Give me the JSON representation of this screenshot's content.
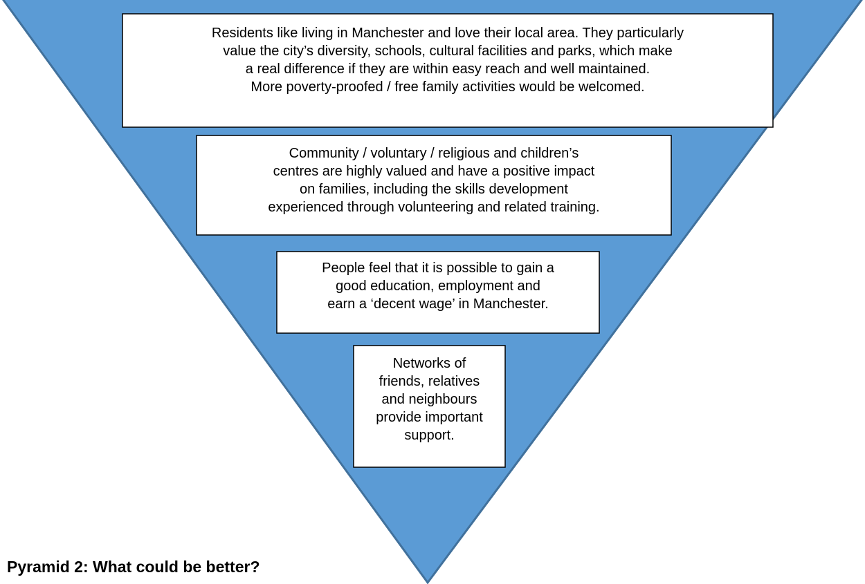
{
  "boxes": [
    {
      "lines": [
        "Residents like living in Manchester and love their local area. They particularly",
        "value the city’s diversity, schools, cultural facilities and parks, which make",
        "a real difference if they are within easy reach and well maintained.",
        "More poverty-proofed / free family activities would be welcomed."
      ]
    },
    {
      "lines": [
        "Community / voluntary / religious and children’s",
        "centres are highly valued and have a positive impact",
        "on families, including the skills development",
        "experienced through volunteering and related training."
      ]
    },
    {
      "lines": [
        "People feel that it is possible to gain a",
        "good education, employment and",
        "earn a ‘decent wage’ in Manchester."
      ]
    },
    {
      "lines": [
        "Networks of",
        "friends, relatives",
        "and neighbours",
        "provide important",
        "support."
      ]
    }
  ],
  "heading": "Pyramid 2: What could be better?"
}
